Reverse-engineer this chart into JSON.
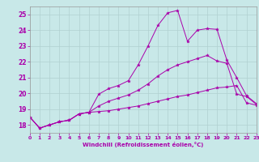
{
  "xlabel": "Windchill (Refroidissement éolien,°C)",
  "xlim": [
    0,
    23
  ],
  "ylim": [
    17.5,
    25.5
  ],
  "yticks": [
    18,
    19,
    20,
    21,
    22,
    23,
    24,
    25
  ],
  "xticks": [
    0,
    1,
    2,
    3,
    4,
    5,
    6,
    7,
    8,
    9,
    10,
    11,
    12,
    13,
    14,
    15,
    16,
    17,
    18,
    19,
    20,
    21,
    22,
    23
  ],
  "bg_color": "#c8e8e8",
  "line_color": "#aa00aa",
  "line1_x": [
    0,
    1,
    2,
    3,
    4,
    5,
    6,
    7,
    8,
    9,
    10,
    11,
    12,
    13,
    14,
    15,
    16,
    17,
    18,
    19,
    20,
    21,
    22,
    23
  ],
  "line1_y": [
    18.5,
    17.8,
    18.0,
    18.2,
    18.3,
    18.7,
    18.8,
    19.95,
    20.3,
    20.5,
    20.8,
    21.8,
    23.0,
    24.3,
    25.1,
    25.25,
    23.3,
    24.0,
    24.1,
    24.05,
    22.1,
    21.0,
    19.85,
    19.35
  ],
  "line2_x": [
    0,
    1,
    2,
    3,
    4,
    5,
    6,
    7,
    8,
    9,
    10,
    11,
    12,
    13,
    14,
    15,
    16,
    17,
    18,
    19,
    20,
    21,
    22,
    23
  ],
  "line2_y": [
    18.5,
    17.8,
    18.0,
    18.2,
    18.3,
    18.7,
    18.8,
    19.2,
    19.5,
    19.7,
    19.9,
    20.2,
    20.6,
    21.1,
    21.5,
    21.8,
    22.0,
    22.2,
    22.4,
    22.05,
    21.9,
    19.95,
    19.8,
    19.3
  ],
  "line3_x": [
    0,
    1,
    2,
    3,
    4,
    5,
    6,
    7,
    8,
    9,
    10,
    11,
    12,
    13,
    14,
    15,
    16,
    17,
    18,
    19,
    20,
    21,
    22,
    23
  ],
  "line3_y": [
    18.5,
    17.8,
    18.0,
    18.2,
    18.3,
    18.7,
    18.8,
    18.85,
    18.9,
    19.0,
    19.1,
    19.2,
    19.35,
    19.5,
    19.65,
    19.8,
    19.9,
    20.05,
    20.2,
    20.35,
    20.4,
    20.5,
    19.4,
    19.25
  ]
}
